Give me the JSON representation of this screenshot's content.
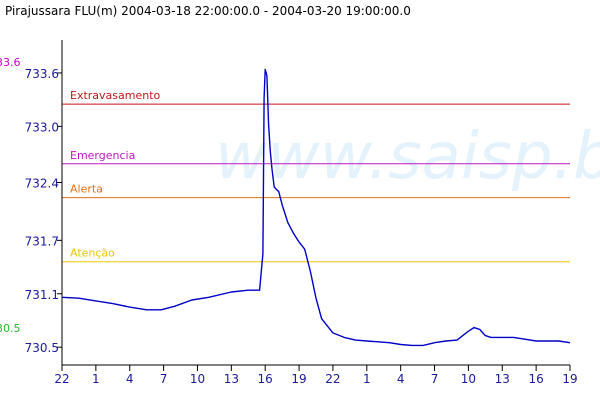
{
  "chart_data": {
    "type": "line",
    "title": "Pirajussara FLU(m) 2004-03-18 22:00:00.0 - 2004-03-20 19:00:00.0",
    "watermark": "www.saisp.br",
    "x_tick_labels": [
      "22",
      "1",
      "4",
      "7",
      "10",
      "13",
      "16",
      "19",
      "22",
      "1",
      "4",
      "7",
      "10",
      "13",
      "16",
      "19"
    ],
    "x_hours": [
      0,
      3,
      6,
      9,
      12,
      15,
      18,
      21,
      24,
      27,
      30,
      33,
      36,
      39,
      42,
      45
    ],
    "xlim": [
      0,
      45
    ],
    "y_tick_labels": [
      "730.5",
      "731.1",
      "731.7",
      "732.4",
      "733.0",
      "733.6"
    ],
    "y_tick_values": [
      730.5,
      731.1,
      731.7,
      732.35,
      732.98,
      733.58
    ],
    "ylim": [
      730.3,
      733.95
    ],
    "max_label": "33.6",
    "max_value": 733.6,
    "min_label": "30.5",
    "min_value": 730.52,
    "levels": [
      {
        "name": "Extravasamento",
        "value": 733.23,
        "color": "#c01818"
      },
      {
        "name": "Emergencia",
        "value": 732.56,
        "color": "#c018c0"
      },
      {
        "name": "Alerta",
        "value": 732.18,
        "color": "#e07010"
      },
      {
        "name": "Atenção",
        "value": 731.46,
        "color": "#e8c800"
      }
    ],
    "series": [
      {
        "color": "#0000c8",
        "x": [
          0,
          1.5,
          3,
          4.5,
          6,
          7.5,
          8.8,
          10,
          11.5,
          13,
          15,
          16.5,
          17.5,
          17.8,
          17.9,
          18.0,
          18.15,
          18.3,
          18.45,
          18.6,
          18.8,
          19.0,
          19.2,
          19.5,
          20,
          20.5,
          21,
          21.5,
          22,
          22.5,
          23,
          24,
          25,
          26,
          27,
          28,
          29,
          30,
          31,
          32,
          33,
          34,
          35,
          35.5,
          36,
          36.5,
          37,
          37.5,
          38,
          39,
          40,
          41,
          42,
          43,
          44,
          45
        ],
        "y": [
          731.06,
          731.05,
          731.02,
          730.99,
          730.95,
          730.92,
          730.92,
          730.96,
          731.03,
          731.06,
          731.12,
          731.14,
          731.14,
          731.55,
          733.3,
          733.62,
          733.55,
          733.0,
          732.7,
          732.5,
          732.3,
          732.27,
          732.25,
          732.1,
          731.9,
          731.78,
          731.68,
          731.6,
          731.35,
          731.05,
          730.82,
          730.66,
          730.61,
          730.58,
          730.57,
          730.56,
          730.55,
          730.53,
          730.52,
          730.52,
          730.55,
          730.57,
          730.58,
          730.63,
          730.68,
          730.72,
          730.7,
          730.63,
          730.61,
          730.61,
          730.61,
          730.59,
          730.57,
          730.57,
          730.57,
          730.55
        ]
      }
    ]
  }
}
